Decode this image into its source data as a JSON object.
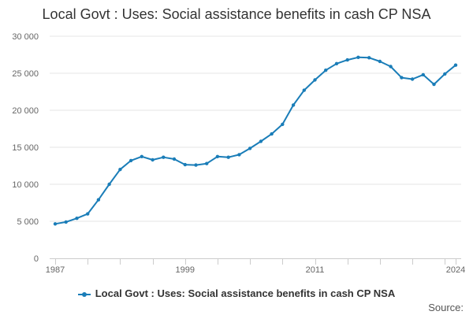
{
  "chart_data": {
    "type": "line",
    "title": "Local Govt : Uses: Social assistance benefits in cash CP NSA",
    "xlabel": "",
    "ylabel": "",
    "x": [
      1987,
      1988,
      1989,
      1990,
      1991,
      1992,
      1993,
      1994,
      1995,
      1996,
      1997,
      1998,
      1999,
      2000,
      2001,
      2002,
      2003,
      2004,
      2005,
      2006,
      2007,
      2008,
      2009,
      2010,
      2011,
      2012,
      2013,
      2014,
      2015,
      2016,
      2017,
      2018,
      2019,
      2020,
      2021,
      2022,
      2023,
      2024
    ],
    "series": [
      {
        "name": "Local Govt : Uses: Social assistance benefits in cash CP NSA",
        "values": [
          4650,
          4900,
          5400,
          6000,
          7900,
          10000,
          12000,
          13200,
          13750,
          13300,
          13650,
          13400,
          12650,
          12600,
          12800,
          13750,
          13650,
          14000,
          14850,
          15800,
          16800,
          18100,
          20700,
          22700,
          24100,
          25400,
          26300,
          26800,
          27150,
          27100,
          26600,
          25900,
          24400,
          24200,
          24800,
          23500,
          24900,
          26100
        ]
      }
    ],
    "y_ticks": [
      "0",
      "5 000",
      "10 000",
      "15 000",
      "20 000",
      "25 000",
      "30 000"
    ],
    "y_tick_values": [
      0,
      5000,
      10000,
      15000,
      20000,
      25000,
      30000
    ],
    "x_tick_labels": [
      "1987",
      "1999",
      "2011",
      "2024"
    ],
    "x_tick_values": [
      1987,
      1999,
      2011,
      2024
    ],
    "ylim": [
      0,
      30000
    ],
    "xlim": [
      1987,
      2024
    ],
    "grid": true,
    "legend_position": "bottom",
    "color": "#1a7db8"
  },
  "legend": {
    "label": "Local Govt : Uses: Social assistance benefits in cash CP NSA"
  },
  "source_label": "Source:"
}
